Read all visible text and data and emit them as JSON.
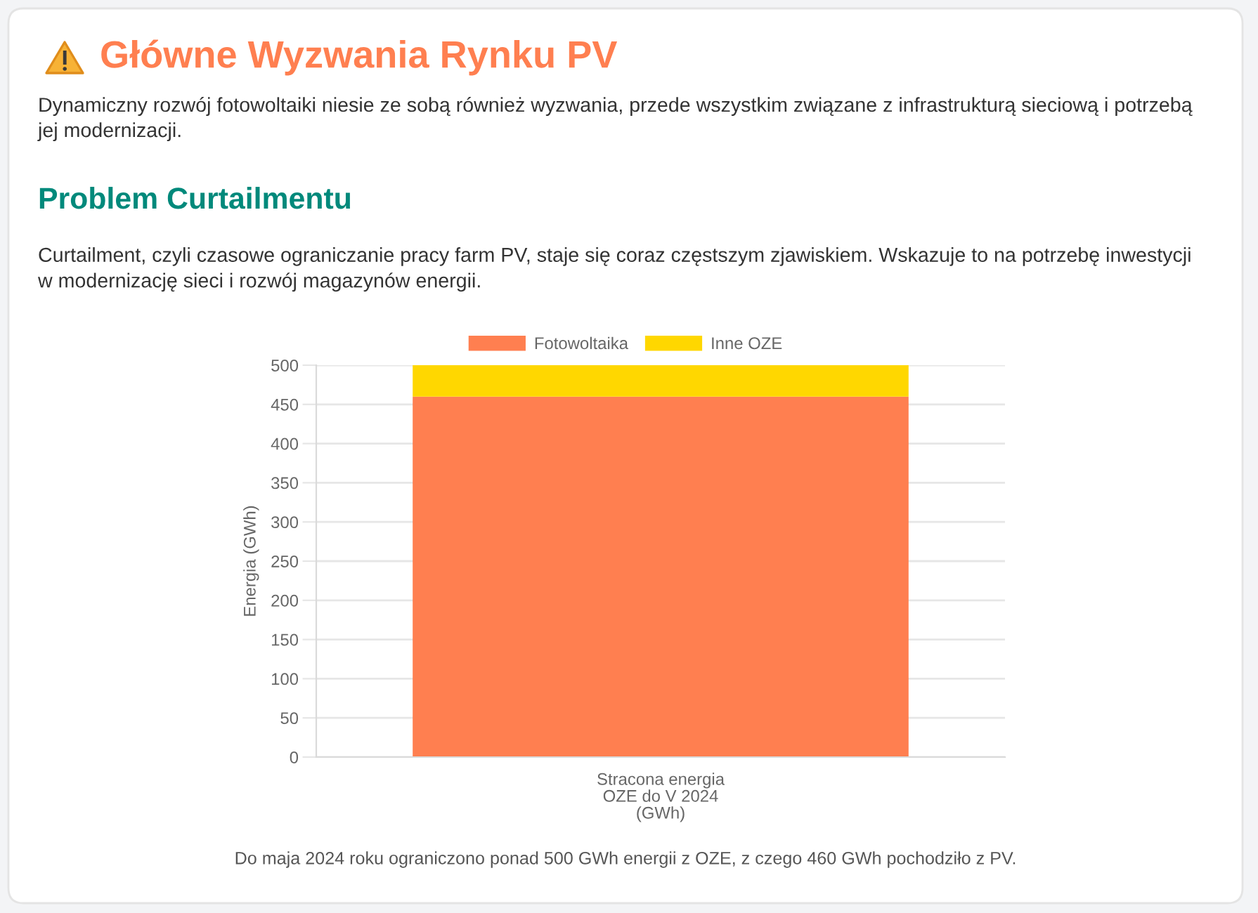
{
  "chart_data": {
    "type": "bar",
    "title": "Główne Wyzwania Rynku PV",
    "subtitle": "Dynamiczny rozwój fotowoltaiki niesie ze sobą również wyzwania, przede wszystkim związane z infrastrukturą sieciową i potrzebą jej modernizacji.",
    "annotations": [
      "Problem Curtailmentu",
      "Curtailment, czyli czasowe ograniczanie pracy farm PV, staje się coraz częstszym zjawiskiem. Wskazuje to na potrzebę inwestycji w modernizację sieci i rozwój magazynów energii.",
      "Do maja 2024 roku ograniczono ponad 500 GWh energii z OZE, z czego 460 GWh pochodziło z PV."
    ],
    "categories": [
      "Stracona energia\nOZE do V 2024\n(GWh)"
    ],
    "series": [
      {
        "name": "Fotowoltaika",
        "color": "#ff7f50",
        "values": [
          460
        ]
      },
      {
        "name": "Inne OZE",
        "color": "#ffd700",
        "values": [
          40
        ]
      }
    ],
    "stacked": true,
    "ylabel": "Energia (GWh)",
    "ylim": [
      0,
      500
    ],
    "yticks": [
      0,
      50,
      100,
      150,
      200,
      250,
      300,
      350,
      400,
      450,
      500
    ],
    "grid": "y",
    "legend": "top"
  }
}
